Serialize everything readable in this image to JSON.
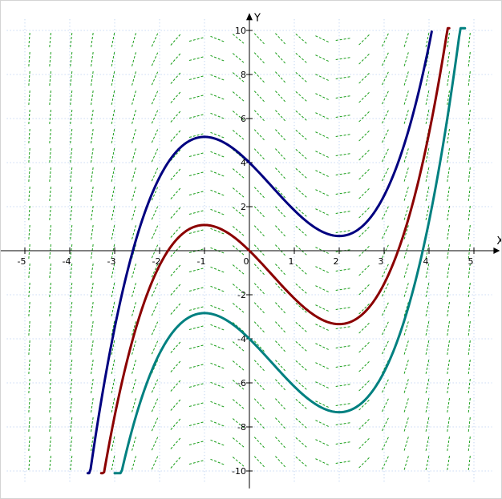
{
  "chart_data": {
    "type": "line",
    "subtype": "slope-field",
    "title": "",
    "xlabel": "X",
    "ylabel": "Y",
    "xlim": [
      -5.4,
      5.4
    ],
    "ylim": [
      -10.5,
      10.5
    ],
    "x_ticks": [
      -5,
      -4,
      -3,
      -2,
      -1,
      0,
      1,
      2,
      3,
      4,
      5
    ],
    "x_tick_labels": [
      "-5",
      "-4",
      "-3",
      "-2",
      "-1",
      "0",
      "1",
      "2",
      "3",
      "4",
      "5"
    ],
    "y_ticks": [
      -10,
      -8,
      -6,
      -4,
      -2,
      2,
      4,
      6,
      8,
      10
    ],
    "y_tick_labels": [
      "-10",
      "-8",
      "-6",
      "-4",
      "-2",
      "2",
      "4",
      "6",
      "8",
      "10"
    ],
    "grid": true,
    "slope_field": {
      "derivative": "x^2 - x - 2",
      "x_range": [
        -4.9,
        4.9
      ],
      "y_range": [
        -9.6,
        9.6
      ],
      "color": "#1a9e1a"
    },
    "series": [
      {
        "color": "#000080",
        "offset": 4,
        "x_range": [
          -3.6,
          4.06
        ],
        "values_at": {
          "x": [
            -3,
            -1,
            0,
            2,
            4
          ],
          "y": [
            -3.5,
            5.1667,
            4,
            0.6667,
            9.3333
          ]
        }
      },
      {
        "color": "#8b0000",
        "offset": 0,
        "x_range": [
          -3.3,
          4.45
        ],
        "values_at": {
          "x": [
            -3,
            -1,
            0,
            2,
            4
          ],
          "y": [
            -7.5,
            1.1667,
            0,
            -3.3333,
            5.3333
          ]
        }
      },
      {
        "color": "#008080",
        "offset": -4,
        "x_range": [
          -3.0,
          4.8
        ],
        "values_at": {
          "x": [
            -3,
            -1,
            0,
            2,
            4
          ],
          "y": [
            -11.5,
            -2.8333,
            -4,
            -7.3333,
            1.3333
          ]
        }
      }
    ],
    "colors": {
      "axis": "#000000",
      "grid": "#aec7ee",
      "background": "#ffffff"
    }
  }
}
